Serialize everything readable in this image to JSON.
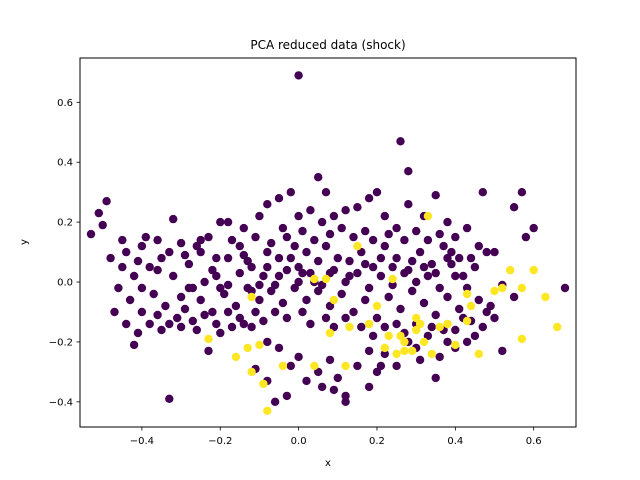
{
  "chart_data": {
    "type": "scatter",
    "title": "PCA reduced data (shock)",
    "xlabel": "x",
    "ylabel": "y",
    "xlim": [
      -0.558,
      0.708
    ],
    "ylim": [
      -0.484,
      0.748
    ],
    "xticks": [
      -0.4,
      -0.2,
      0.0,
      0.2,
      0.4,
      0.6
    ],
    "xtick_labels": [
      "−0.4",
      "−0.2",
      "0.0",
      "0.2",
      "0.4",
      "0.6"
    ],
    "yticks": [
      -0.4,
      -0.2,
      0.0,
      0.2,
      0.4,
      0.6
    ],
    "ytick_labels": [
      "−0.4",
      "−0.2",
      "0.0",
      "0.2",
      "0.4",
      "0.6"
    ],
    "grid": false,
    "colors": {
      "class_0": "#440154",
      "class_1": "#fde725"
    },
    "series": [
      {
        "class": 0,
        "points": [
          [
            0.0,
            0.69
          ],
          [
            0.26,
            0.47
          ],
          [
            0.28,
            0.37
          ],
          [
            0.07,
            0.3
          ],
          [
            0.05,
            0.35
          ],
          [
            -0.53,
            0.16
          ],
          [
            -0.5,
            0.19
          ],
          [
            -0.49,
            0.27
          ],
          [
            -0.51,
            0.23
          ],
          [
            -0.32,
            0.21
          ],
          [
            -0.45,
            0.14
          ],
          [
            -0.4,
            0.12
          ],
          [
            -0.36,
            0.14
          ],
          [
            -0.3,
            0.13
          ],
          [
            -0.25,
            0.14
          ],
          [
            -0.2,
            0.2
          ],
          [
            -0.18,
            0.2
          ],
          [
            -0.14,
            0.18
          ],
          [
            -0.1,
            0.22
          ],
          [
            -0.08,
            0.26
          ],
          [
            -0.05,
            0.28
          ],
          [
            -0.02,
            0.3
          ],
          [
            0.0,
            0.22
          ],
          [
            0.03,
            0.24
          ],
          [
            0.06,
            0.2
          ],
          [
            0.09,
            0.22
          ],
          [
            0.12,
            0.24
          ],
          [
            0.15,
            0.25
          ],
          [
            0.18,
            0.28
          ],
          [
            0.2,
            0.3
          ],
          [
            0.22,
            0.22
          ],
          [
            0.25,
            0.18
          ],
          [
            0.28,
            0.26
          ],
          [
            0.32,
            0.22
          ],
          [
            0.35,
            0.29
          ],
          [
            0.38,
            0.2
          ],
          [
            0.4,
            0.15
          ],
          [
            0.43,
            0.18
          ],
          [
            0.47,
            0.3
          ],
          [
            0.55,
            0.25
          ],
          [
            0.57,
            0.3
          ],
          [
            0.58,
            0.15
          ],
          [
            0.6,
            0.18
          ],
          [
            0.68,
            -0.02
          ],
          [
            0.52,
            -0.01
          ],
          [
            0.55,
            -0.05
          ],
          [
            0.48,
            0.1
          ],
          [
            0.5,
            0.1
          ],
          [
            0.45,
            0.05
          ],
          [
            0.42,
            0.02
          ],
          [
            -0.48,
            0.08
          ],
          [
            -0.45,
            0.05
          ],
          [
            -0.42,
            0.02
          ],
          [
            -0.4,
            -0.02
          ],
          [
            -0.38,
            0.05
          ],
          [
            -0.35,
            0.08
          ],
          [
            -0.32,
            0.02
          ],
          [
            -0.3,
            -0.05
          ],
          [
            -0.28,
            0.06
          ],
          [
            -0.25,
            0.1
          ],
          [
            -0.22,
            0.04
          ],
          [
            -0.2,
            -0.02
          ],
          [
            -0.18,
            0.08
          ],
          [
            -0.15,
            0.12
          ],
          [
            -0.12,
            0.05
          ],
          [
            -0.1,
            -0.01
          ],
          [
            -0.08,
            0.1
          ],
          [
            -0.05,
            0.08
          ],
          [
            -0.03,
            0.15
          ],
          [
            0.0,
            0.05
          ],
          [
            0.02,
            0.1
          ],
          [
            0.04,
            0.0
          ],
          [
            0.07,
            0.12
          ],
          [
            0.1,
            0.08
          ],
          [
            0.13,
            0.02
          ],
          [
            0.16,
            0.1
          ],
          [
            0.19,
            0.05
          ],
          [
            0.22,
            0.12
          ],
          [
            0.25,
            0.08
          ],
          [
            0.28,
            0.04
          ],
          [
            0.31,
            0.1
          ],
          [
            0.34,
            0.06
          ],
          [
            0.37,
            0.12
          ],
          [
            0.4,
            0.02
          ],
          [
            0.43,
            -0.02
          ],
          [
            -0.46,
            -0.02
          ],
          [
            -0.43,
            -0.06
          ],
          [
            -0.4,
            -0.1
          ],
          [
            -0.37,
            -0.04
          ],
          [
            -0.34,
            -0.08
          ],
          [
            -0.31,
            -0.12
          ],
          [
            -0.28,
            -0.02
          ],
          [
            -0.25,
            -0.06
          ],
          [
            -0.22,
            -0.1
          ],
          [
            -0.19,
            -0.04
          ],
          [
            -0.16,
            -0.08
          ],
          [
            -0.13,
            -0.02
          ],
          [
            -0.1,
            -0.06
          ],
          [
            -0.07,
            -0.03
          ],
          [
            -0.04,
            -0.07
          ],
          [
            -0.01,
            -0.02
          ],
          [
            0.02,
            -0.06
          ],
          [
            0.05,
            -0.03
          ],
          [
            0.08,
            -0.08
          ],
          [
            0.11,
            -0.04
          ],
          [
            0.14,
            -0.1
          ],
          [
            0.17,
            -0.06
          ],
          [
            0.2,
            -0.12
          ],
          [
            0.23,
            -0.05
          ],
          [
            0.26,
            -0.09
          ],
          [
            0.29,
            -0.03
          ],
          [
            0.32,
            -0.07
          ],
          [
            0.35,
            -0.11
          ],
          [
            0.38,
            -0.05
          ],
          [
            0.41,
            -0.09
          ],
          [
            0.44,
            -0.13
          ],
          [
            0.46,
            -0.06
          ],
          [
            0.48,
            -0.1
          ],
          [
            -0.42,
            -0.21
          ],
          [
            -0.38,
            -0.14
          ],
          [
            -0.35,
            -0.16
          ],
          [
            -0.3,
            -0.15
          ],
          [
            -0.26,
            -0.16
          ],
          [
            -0.23,
            -0.23
          ],
          [
            -0.2,
            -0.17
          ],
          [
            -0.17,
            -0.15
          ],
          [
            -0.15,
            -0.12
          ],
          [
            -0.12,
            -0.15
          ],
          [
            -0.08,
            -0.2
          ],
          [
            -0.05,
            -0.22
          ],
          [
            -0.02,
            -0.28
          ],
          [
            0.0,
            -0.25
          ],
          [
            0.02,
            -0.33
          ],
          [
            0.05,
            -0.3
          ],
          [
            0.08,
            -0.26
          ],
          [
            0.1,
            -0.32
          ],
          [
            0.12,
            -0.38
          ],
          [
            0.15,
            -0.28
          ],
          [
            0.18,
            -0.23
          ],
          [
            0.2,
            -0.3
          ],
          [
            0.22,
            -0.24
          ],
          [
            0.25,
            -0.28
          ],
          [
            0.28,
            -0.2
          ],
          [
            0.3,
            -0.22
          ],
          [
            0.33,
            -0.18
          ],
          [
            0.36,
            -0.25
          ],
          [
            0.38,
            -0.2
          ],
          [
            0.4,
            -0.16
          ],
          [
            0.42,
            -0.12
          ],
          [
            0.45,
            -0.18
          ],
          [
            0.5,
            -0.12
          ],
          [
            0.52,
            -0.23
          ],
          [
            -0.33,
            -0.39
          ],
          [
            -0.06,
            -0.4
          ],
          [
            0.06,
            -0.35
          ],
          [
            0.12,
            -0.4
          ],
          [
            -0.03,
            -0.38
          ],
          [
            0.09,
            -0.36
          ],
          [
            0.35,
            -0.32
          ],
          [
            0.18,
            -0.35
          ],
          [
            0.21,
            -0.28
          ],
          [
            -0.11,
            -0.29
          ],
          [
            -0.08,
            -0.33
          ],
          [
            0.31,
            -0.26
          ],
          [
            -0.27,
            -0.02
          ],
          [
            -0.24,
            0.0
          ],
          [
            -0.21,
            0.02
          ],
          [
            -0.18,
            -0.01
          ],
          [
            -0.15,
            0.03
          ],
          [
            -0.12,
            -0.03
          ],
          [
            -0.09,
            0.02
          ],
          [
            -0.06,
            -0.01
          ],
          [
            -0.03,
            0.04
          ],
          [
            0.0,
            0.0
          ],
          [
            0.03,
            0.03
          ],
          [
            0.06,
            -0.01
          ],
          [
            0.09,
            0.04
          ],
          [
            0.12,
            0.0
          ],
          [
            0.15,
            0.03
          ],
          [
            0.18,
            -0.02
          ],
          [
            0.21,
            0.02
          ],
          [
            0.24,
            -0.01
          ],
          [
            0.27,
            0.03
          ],
          [
            0.3,
            0.0
          ],
          [
            0.33,
            0.02
          ],
          [
            0.36,
            -0.02
          ],
          [
            0.39,
            0.06
          ],
          [
            -0.44,
            0.1
          ],
          [
            -0.41,
            0.07
          ],
          [
            -0.39,
            0.15
          ],
          [
            -0.36,
            0.04
          ],
          [
            -0.33,
            0.1
          ],
          [
            -0.29,
            0.09
          ],
          [
            -0.26,
            0.12
          ],
          [
            -0.23,
            0.15
          ],
          [
            -0.21,
            0.08
          ],
          [
            -0.17,
            0.14
          ],
          [
            -0.14,
            0.09
          ],
          [
            -0.11,
            0.15
          ],
          [
            -0.07,
            0.13
          ],
          [
            -0.04,
            0.18
          ],
          [
            -0.01,
            0.12
          ],
          [
            0.01,
            0.17
          ],
          [
            0.04,
            0.14
          ],
          [
            0.08,
            0.16
          ],
          [
            0.11,
            0.18
          ],
          [
            0.14,
            0.15
          ],
          [
            0.17,
            0.17
          ],
          [
            0.19,
            0.14
          ],
          [
            0.23,
            0.16
          ],
          [
            0.27,
            0.14
          ],
          [
            0.3,
            0.17
          ],
          [
            0.33,
            0.14
          ],
          [
            0.36,
            0.16
          ],
          [
            0.39,
            0.1
          ],
          [
            0.44,
            0.08
          ],
          [
            0.46,
            0.12
          ],
          [
            -0.47,
            -0.1
          ],
          [
            -0.44,
            -0.14
          ],
          [
            -0.41,
            -0.17
          ],
          [
            -0.36,
            -0.11
          ],
          [
            -0.33,
            -0.14
          ],
          [
            -0.29,
            -0.09
          ],
          [
            -0.27,
            -0.13
          ],
          [
            -0.24,
            -0.11
          ],
          [
            -0.21,
            -0.14
          ],
          [
            -0.18,
            -0.1
          ],
          [
            -0.14,
            -0.14
          ],
          [
            -0.11,
            -0.1
          ],
          [
            -0.09,
            -0.13
          ],
          [
            -0.06,
            -0.1
          ],
          [
            -0.03,
            -0.12
          ],
          [
            0.01,
            -0.1
          ],
          [
            0.03,
            -0.14
          ],
          [
            0.07,
            -0.12
          ],
          [
            0.09,
            -0.15
          ],
          [
            0.12,
            -0.12
          ],
          [
            0.16,
            -0.15
          ],
          [
            0.19,
            -0.18
          ],
          [
            0.22,
            -0.15
          ],
          [
            0.25,
            -0.14
          ],
          [
            0.27,
            -0.17
          ],
          [
            0.3,
            -0.14
          ],
          [
            0.34,
            -0.15
          ],
          [
            0.37,
            -0.16
          ],
          [
            0.4,
            -0.22
          ],
          [
            0.43,
            -0.2
          ],
          [
            0.47,
            -0.15
          ],
          [
            0.49,
            -0.08
          ],
          [
            -0.02,
            0.08
          ],
          [
            0.01,
            0.03
          ],
          [
            -0.05,
            0.02
          ],
          [
            0.05,
            0.07
          ],
          [
            -0.08,
            0.05
          ],
          [
            0.08,
            0.03
          ],
          [
            0.13,
            0.07
          ],
          [
            -0.13,
            0.07
          ],
          [
            0.17,
            0.06
          ],
          [
            0.21,
            0.08
          ],
          [
            0.24,
            0.05
          ],
          [
            0.29,
            0.07
          ],
          [
            0.32,
            0.05
          ],
          [
            0.35,
            0.03
          ],
          [
            0.38,
            0.08
          ],
          [
            0.41,
            0.08
          ]
        ]
      },
      {
        "class": 1,
        "points": [
          [
            -0.1,
            -0.21
          ],
          [
            -0.13,
            -0.22
          ],
          [
            -0.16,
            -0.25
          ],
          [
            -0.12,
            -0.3
          ],
          [
            -0.09,
            -0.34
          ],
          [
            -0.08,
            -0.43
          ],
          [
            -0.04,
            -0.28
          ],
          [
            0.04,
            -0.28
          ],
          [
            -0.23,
            -0.19
          ],
          [
            -0.12,
            -0.05
          ],
          [
            0.07,
            0.01
          ],
          [
            0.15,
            0.12
          ],
          [
            0.12,
            -0.28
          ],
          [
            0.22,
            -0.22
          ],
          [
            0.25,
            -0.24
          ],
          [
            0.27,
            -0.2
          ],
          [
            0.29,
            -0.23
          ],
          [
            0.32,
            -0.2
          ],
          [
            0.34,
            -0.24
          ],
          [
            0.36,
            -0.15
          ],
          [
            0.3,
            -0.12
          ],
          [
            0.26,
            -0.18
          ],
          [
            0.4,
            -0.21
          ],
          [
            0.43,
            -0.13
          ],
          [
            0.46,
            -0.24
          ],
          [
            0.44,
            -0.08
          ],
          [
            0.5,
            -0.03
          ],
          [
            0.52,
            -0.02
          ],
          [
            0.57,
            -0.02
          ],
          [
            0.6,
            0.04
          ],
          [
            0.63,
            -0.05
          ],
          [
            0.57,
            -0.19
          ],
          [
            0.66,
            -0.15
          ],
          [
            0.54,
            0.04
          ],
          [
            0.18,
            -0.14
          ],
          [
            0.2,
            -0.08
          ],
          [
            0.33,
            0.22
          ],
          [
            0.08,
            -0.17
          ],
          [
            0.13,
            -0.15
          ],
          [
            0.23,
            -0.18
          ],
          [
            0.31,
            -0.14
          ],
          [
            0.38,
            -0.14
          ],
          [
            0.43,
            -0.04
          ],
          [
            0.24,
            0.01
          ],
          [
            0.04,
            0.01
          ],
          [
            0.09,
            -0.06
          ],
          [
            0.3,
            -0.16
          ],
          [
            0.27,
            -0.23
          ]
        ]
      }
    ]
  }
}
